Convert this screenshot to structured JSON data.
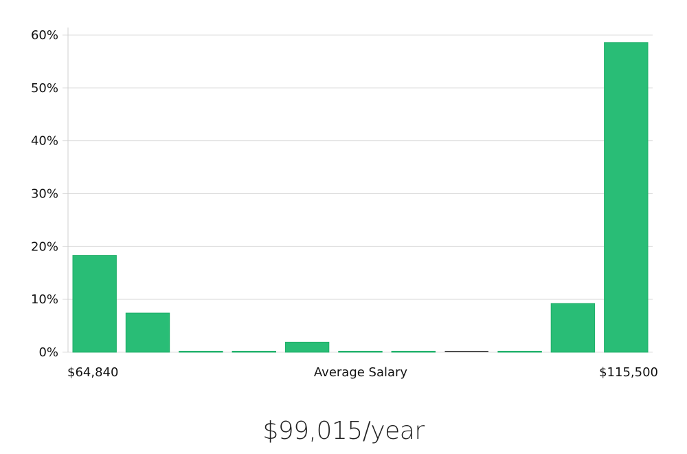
{
  "chart_data": {
    "type": "bar",
    "categories": [
      "1",
      "2",
      "3",
      "4",
      "5",
      "6",
      "7",
      "8",
      "9",
      "10",
      "11"
    ],
    "values": [
      18.3,
      7.4,
      0.15,
      0.15,
      1.9,
      0.15,
      0.15,
      0.15,
      0.15,
      9.2,
      58.6
    ],
    "ylim": [
      0,
      60
    ],
    "yticks": [
      "0%",
      "10%",
      "20%",
      "30%",
      "40%",
      "50%",
      "60%"
    ],
    "x_left_label": "$64,840",
    "x_center_label": "Average Salary",
    "x_right_label": "$115,500",
    "grid": true,
    "bar_color": "#29bd76",
    "bar_edge_color": "#1fae68",
    "highlight_bar_index": 7,
    "highlight_bar_color": "#111111"
  },
  "summary": "$99,015/year"
}
